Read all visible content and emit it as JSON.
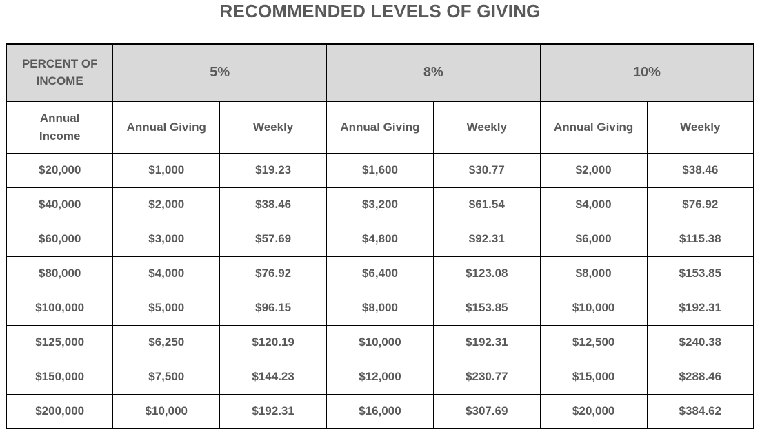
{
  "title": "RECOMMENDED LEVELS OF GIVING",
  "colors": {
    "text": "#595959",
    "header_background": "#d9d9d9",
    "border": "#000000",
    "page_background": "#ffffff"
  },
  "table": {
    "group_header": {
      "corner": "PERCENT OF\nINCOME",
      "groups": [
        "5%",
        "8%",
        "10%"
      ]
    },
    "sub_headers": {
      "income": "Annual\nIncome",
      "annual_giving": "Annual Giving",
      "weekly": "Weekly"
    },
    "rows": [
      [
        "$20,000",
        "$1,000",
        "$19.23",
        "$1,600",
        "$30.77",
        "$2,000",
        "$38.46"
      ],
      [
        "$40,000",
        "$2,000",
        "$38.46",
        "$3,200",
        "$61.54",
        "$4,000",
        "$76.92"
      ],
      [
        "$60,000",
        "$3,000",
        "$57.69",
        "$4,800",
        "$92.31",
        "$6,000",
        "$115.38"
      ],
      [
        "$80,000",
        "$4,000",
        "$76.92",
        "$6,400",
        "$123.08",
        "$8,000",
        "$153.85"
      ],
      [
        "$100,000",
        "$5,000",
        "$96.15",
        "$8,000",
        "$153.85",
        "$10,000",
        "$192.31"
      ],
      [
        "$125,000",
        "$6,250",
        "$120.19",
        "$10,000",
        "$192.31",
        "$12,500",
        "$240.38"
      ],
      [
        "$150,000",
        "$7,500",
        "$144.23",
        "$12,000",
        "$230.77",
        "$15,000",
        "$288.46"
      ],
      [
        "$200,000",
        "$10,000",
        "$192.31",
        "$16,000",
        "$307.69",
        "$20,000",
        "$384.62"
      ]
    ]
  },
  "chart_data": {
    "type": "table",
    "title": "RECOMMENDED LEVELS OF GIVING",
    "column_groups": [
      "Percent of Income",
      "5%",
      "5%",
      "8%",
      "8%",
      "10%",
      "10%"
    ],
    "columns": [
      "Annual Income",
      "Annual Giving (5%)",
      "Weekly (5%)",
      "Annual Giving (8%)",
      "Weekly (8%)",
      "Annual Giving (10%)",
      "Weekly (10%)"
    ],
    "rows": [
      [
        "$20,000",
        "$1,000",
        "$19.23",
        "$1,600",
        "$30.77",
        "$2,000",
        "$38.46"
      ],
      [
        "$40,000",
        "$2,000",
        "$38.46",
        "$3,200",
        "$61.54",
        "$4,000",
        "$76.92"
      ],
      [
        "$60,000",
        "$3,000",
        "$57.69",
        "$4,800",
        "$92.31",
        "$6,000",
        "$115.38"
      ],
      [
        "$80,000",
        "$4,000",
        "$76.92",
        "$6,400",
        "$123.08",
        "$8,000",
        "$153.85"
      ],
      [
        "$100,000",
        "$5,000",
        "$96.15",
        "$8,000",
        "$153.85",
        "$10,000",
        "$192.31"
      ],
      [
        "$125,000",
        "$6,250",
        "$120.19",
        "$10,000",
        "$192.31",
        "$12,500",
        "$240.38"
      ],
      [
        "$150,000",
        "$7,500",
        "$144.23",
        "$12,000",
        "$230.77",
        "$15,000",
        "$288.46"
      ],
      [
        "$200,000",
        "$10,000",
        "$192.31",
        "$16,000",
        "$307.69",
        "$20,000",
        "$384.62"
      ]
    ]
  }
}
